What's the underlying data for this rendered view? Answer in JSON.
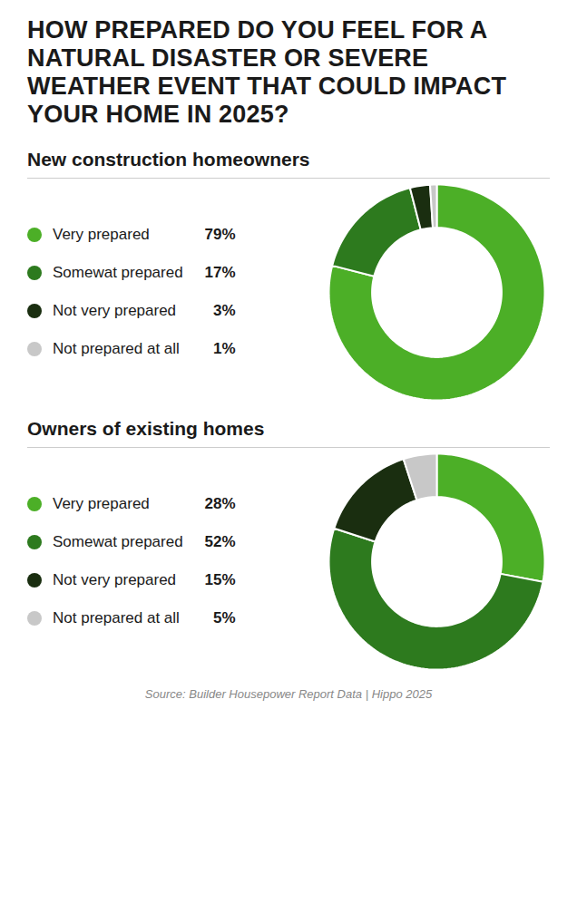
{
  "title": "HOW PREPARED DO YOU FEEL FOR A NATURAL DISASTER OR SEVERE WEATHER EVENT THAT COULD IMPACT YOUR HOME IN 2025?",
  "source": "Source: Builder Housepower Report Data | Hippo 2025",
  "chart_data": [
    {
      "type": "donut",
      "title": "New construction homeowners",
      "categories": [
        "Very prepared",
        "Somewat prepared",
        "Not very prepared",
        "Not prepared at all"
      ],
      "values": [
        79,
        17,
        3,
        1
      ],
      "value_labels": [
        "79%",
        "17%",
        "3%",
        "1%"
      ],
      "colors": [
        "#4caf27",
        "#2d7a1e",
        "#1a2e10",
        "#c8c8c8"
      ],
      "legend": "left"
    },
    {
      "type": "donut",
      "title": "Owners of existing homes",
      "categories": [
        "Very prepared",
        "Somewat prepared",
        "Not very prepared",
        "Not prepared at all"
      ],
      "values": [
        28,
        52,
        15,
        5
      ],
      "value_labels": [
        "28%",
        "52%",
        "15%",
        "5%"
      ],
      "colors": [
        "#4caf27",
        "#2d7a1e",
        "#1a2e10",
        "#c8c8c8"
      ],
      "legend": "left"
    }
  ]
}
